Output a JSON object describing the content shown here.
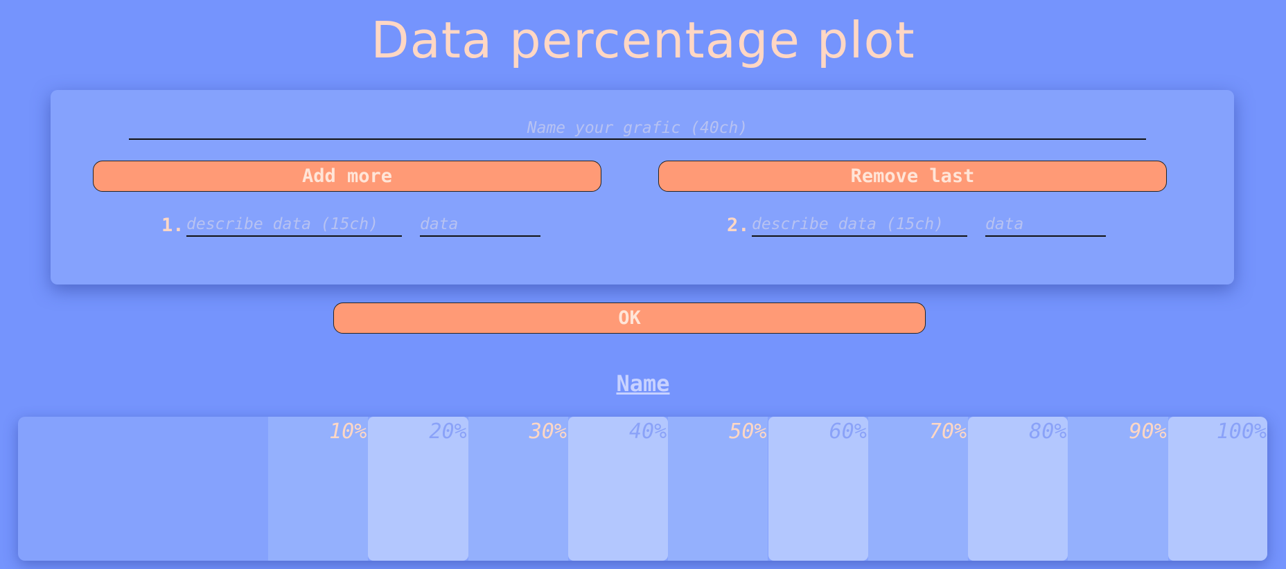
{
  "page": {
    "title": "Data percentage plot"
  },
  "form": {
    "name_placeholder": "Name your grafic (40ch)",
    "add_label": "Add more",
    "remove_label": "Remove last",
    "rows": [
      {
        "num": "1.",
        "describe_placeholder": "describe data (15ch)",
        "data_placeholder": "data"
      },
      {
        "num": "2.",
        "describe_placeholder": "describe data (15ch)",
        "data_placeholder": "data"
      }
    ],
    "ok_label": "OK"
  },
  "plot": {
    "name": "Name",
    "columns": [
      "10%",
      "20%",
      "30%",
      "40%",
      "50%",
      "60%",
      "70%",
      "80%",
      "90%",
      "100%"
    ]
  },
  "colors": {
    "background": "#7594fd",
    "card": "#85a2fd",
    "button": "#ff9a76",
    "title": "#ffd7c4"
  }
}
